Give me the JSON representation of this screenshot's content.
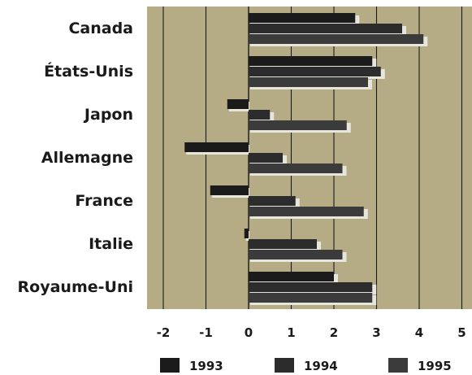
{
  "chart_data": {
    "type": "bar",
    "orientation": "horizontal",
    "categories": [
      "Canada",
      "États-Unis",
      "Japon",
      "Allemagne",
      "France",
      "Italie",
      "Royaume-Uni"
    ],
    "series": [
      {
        "name": "1993",
        "color": "#1b1b1b",
        "values": [
          2.5,
          2.9,
          -0.5,
          -1.5,
          -0.9,
          -0.1,
          2.0
        ]
      },
      {
        "name": "1994",
        "color": "#2c2c2c",
        "values": [
          3.6,
          3.1,
          0.5,
          0.8,
          1.1,
          1.6,
          2.9
        ]
      },
      {
        "name": "1995",
        "color": "#3b3b3b",
        "values": [
          4.1,
          2.8,
          2.3,
          2.2,
          2.7,
          2.2,
          2.9
        ]
      }
    ],
    "x_ticks": [
      "-2",
      "-1",
      "0",
      "1",
      "2",
      "3",
      "4",
      "5"
    ],
    "xlim": [
      -2,
      5
    ],
    "grid": true,
    "legend_position": "bottom",
    "plot_background": "#b5ac86"
  }
}
